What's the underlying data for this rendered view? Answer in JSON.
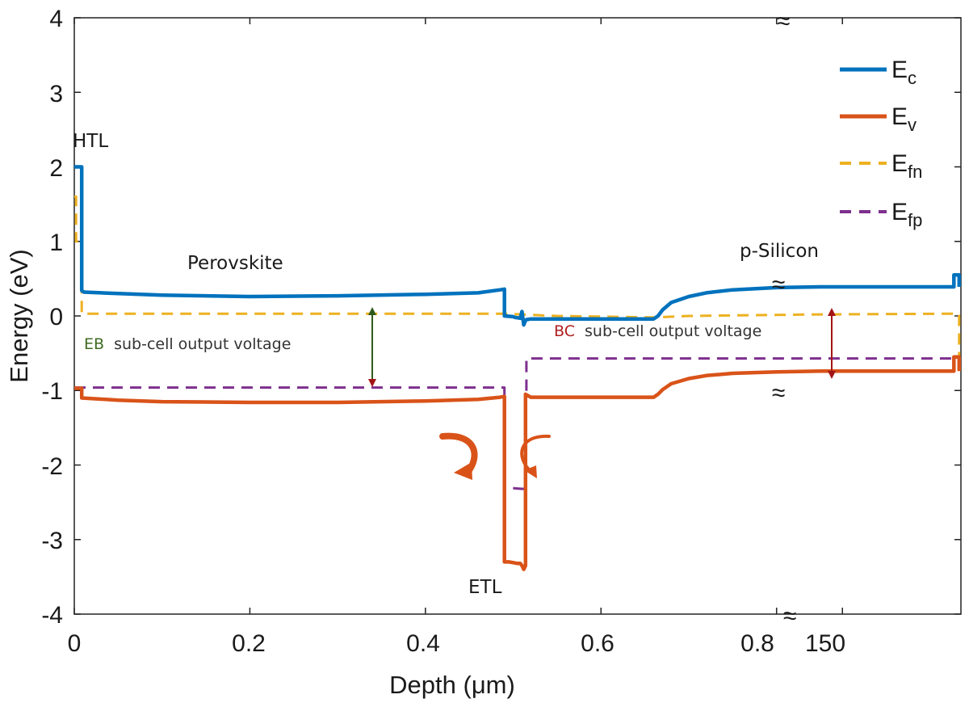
{
  "chart_data": {
    "type": "line",
    "title": "",
    "xlabel": "Depth (μm)",
    "ylabel": "Energy (eV)",
    "xlim": [
      0,
      1.01
    ],
    "ylim": [
      -4,
      4
    ],
    "x_break": 0.84,
    "x_ticks": [
      "0",
      "0.2",
      "0.4",
      "0.6",
      "0.8",
      "150"
    ],
    "x_tick_values": [
      0,
      0.2,
      0.4,
      0.6,
      0.8,
      0.875
    ],
    "y_ticks": [
      "4",
      "3",
      "2",
      "1",
      "0",
      "-1",
      "-2",
      "-3",
      "-4"
    ],
    "y_tick_values": [
      4,
      3,
      2,
      1,
      0,
      -1,
      -2,
      -3,
      -4
    ],
    "break_symbol": "≈",
    "colors": {
      "Ec": "#0072BD",
      "Ev": "#D95319",
      "Efn": "#EDB120",
      "Efp": "#7E2F8E",
      "eb_arrow": "#2f5a1c",
      "bc_arrow": "#a31515"
    },
    "series": [
      {
        "name": "Ec",
        "legend_main": "E",
        "legend_sub": "c",
        "style": "solid",
        "color": "#0072BD",
        "x": [
          0.0,
          0.0055,
          0.0055,
          0.0085,
          0.0085,
          0.011,
          0.05,
          0.1,
          0.2,
          0.3,
          0.4,
          0.46,
          0.485,
          0.49,
          0.49,
          0.5,
          0.502,
          0.508,
          0.51,
          0.512,
          0.514,
          0.515,
          0.52,
          0.55,
          0.6,
          0.66,
          0.665,
          0.67,
          0.68,
          0.7,
          0.72,
          0.75,
          0.8,
          0.85,
          0.9,
          0.95,
          1.0,
          1.002,
          1.002,
          1.008,
          1.008
        ],
        "y": [
          2.0,
          2.0,
          2.0,
          2.0,
          0.34,
          0.32,
          0.3,
          0.28,
          0.26,
          0.27,
          0.29,
          0.31,
          0.35,
          0.36,
          0.0,
          -0.01,
          -0.02,
          -0.03,
          0.06,
          -0.12,
          -0.06,
          -0.05,
          -0.04,
          -0.04,
          -0.04,
          -0.04,
          0.0,
          0.08,
          0.18,
          0.26,
          0.31,
          0.35,
          0.38,
          0.39,
          0.39,
          0.39,
          0.39,
          0.39,
          0.55,
          0.55,
          0.39
        ]
      },
      {
        "name": "Ev",
        "legend_main": "E",
        "legend_sub": "v",
        "style": "solid",
        "color": "#D95319",
        "x": [
          0.0,
          0.0085,
          0.0085,
          0.05,
          0.1,
          0.2,
          0.3,
          0.4,
          0.46,
          0.485,
          0.49,
          0.49,
          0.495,
          0.5,
          0.505,
          0.508,
          0.51,
          0.512,
          0.514,
          0.514,
          0.52,
          0.55,
          0.6,
          0.66,
          0.665,
          0.67,
          0.68,
          0.7,
          0.72,
          0.75,
          0.8,
          0.85,
          0.9,
          0.95,
          1.0,
          1.002,
          1.002,
          1.008,
          1.008
        ],
        "y": [
          -0.97,
          -0.97,
          -1.1,
          -1.13,
          -1.15,
          -1.16,
          -1.16,
          -1.14,
          -1.12,
          -1.09,
          -1.08,
          -3.3,
          -3.3,
          -3.31,
          -3.32,
          -3.32,
          -3.35,
          -3.4,
          -3.35,
          -1.05,
          -1.09,
          -1.09,
          -1.09,
          -1.09,
          -1.05,
          -0.99,
          -0.91,
          -0.84,
          -0.8,
          -0.77,
          -0.75,
          -0.74,
          -0.74,
          -0.74,
          -0.74,
          -0.74,
          -0.55,
          -0.55,
          -0.74
        ]
      },
      {
        "name": "Efn",
        "legend_main": "E",
        "legend_sub": "fn",
        "style": "dashed",
        "color": "#EDB120",
        "x": [
          0.0,
          0.002,
          0.002,
          0.0085,
          0.0085,
          0.1,
          0.3,
          0.49,
          0.55,
          0.66,
          0.7,
          0.84,
          1.0,
          1.008,
          1.008
        ],
        "y": [
          1.6,
          1.6,
          1.0,
          1.0,
          0.03,
          0.03,
          0.03,
          0.03,
          0.0,
          -0.02,
          0.0,
          0.02,
          0.03,
          0.03,
          -0.57
        ]
      },
      {
        "name": "Efp",
        "legend_main": "E",
        "legend_sub": "fp",
        "style": "dashed",
        "color": "#7E2F8E",
        "x": [
          0.0,
          0.1,
          0.3,
          0.49,
          0.49,
          0.51,
          0.512,
          0.514,
          0.514,
          0.515,
          0.515,
          0.55,
          0.7,
          0.84,
          1.0,
          1.008
        ],
        "y": [
          -0.96,
          -0.96,
          -0.96,
          -0.96,
          -2.3,
          -2.32,
          -2.32,
          -2.32,
          -1.05,
          -1.05,
          -0.57,
          -0.57,
          -0.57,
          -0.57,
          -0.57,
          -0.57
        ]
      }
    ],
    "annotations": {
      "htl": "HTL",
      "perovskite": "Perovskite",
      "psilicon": "p-Silicon",
      "etl": "ETL",
      "eb_prefix": "EB",
      "eb_text": "sub-cell output voltage",
      "bc_prefix": "BC",
      "bc_text": "sub-cell output voltage"
    }
  }
}
